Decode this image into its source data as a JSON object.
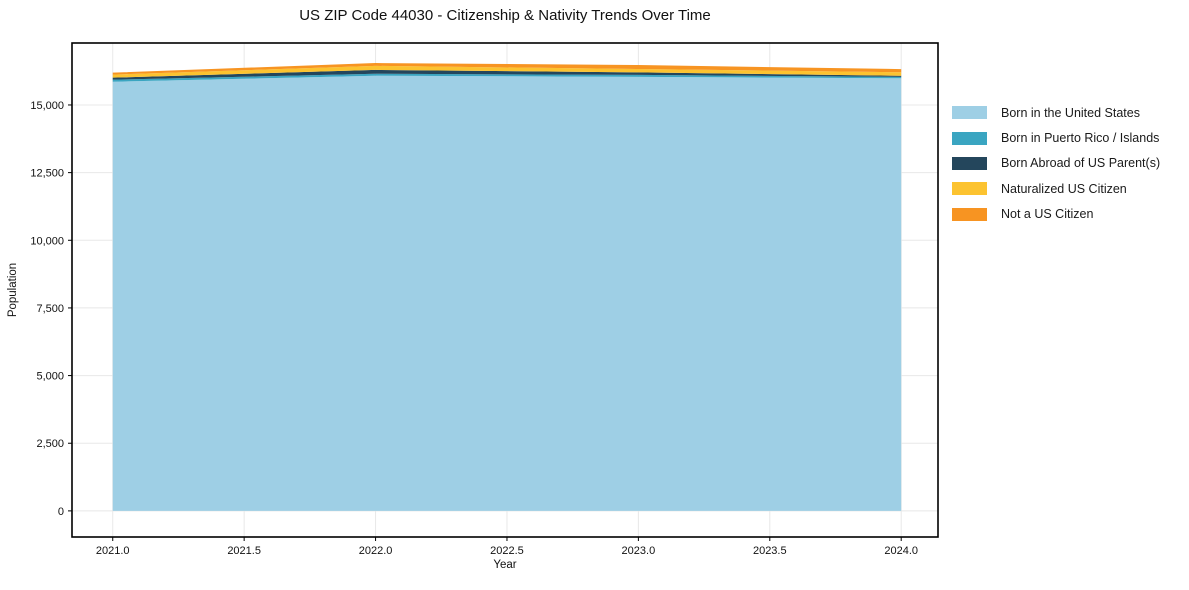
{
  "chart_data": {
    "type": "area",
    "stacked": true,
    "title": "US ZIP Code 44030 - Citizenship & Nativity Trends Over Time",
    "xlabel": "Year",
    "ylabel": "Population",
    "x": [
      2021,
      2022,
      2023,
      2024
    ],
    "series": [
      {
        "name": "Born in the United States",
        "color": "#9ecfe5",
        "values": [
          15860,
          16080,
          16040,
          15985
        ]
      },
      {
        "name": "Born in Puerto Rico / Islands",
        "color": "#3aa5c1",
        "values": [
          75,
          75,
          70,
          55
        ]
      },
      {
        "name": "Born Abroad of US Parent(s)",
        "color": "#24465c",
        "values": [
          75,
          140,
          95,
          40
        ]
      },
      {
        "name": "Naturalized US Citizen",
        "color": "#fcc330",
        "values": [
          110,
          150,
          125,
          130
        ]
      },
      {
        "name": "Not a US Citizen",
        "color": "#f79422",
        "values": [
          75,
          105,
          145,
          115
        ]
      }
    ],
    "xlim": [
      2020.845,
      2024.14
    ],
    "ylim": [
      -965,
      17290
    ],
    "xticks": {
      "values": [
        2021.0,
        2021.5,
        2022.0,
        2022.5,
        2023.0,
        2023.5,
        2024.0
      ],
      "labels": [
        "2021.0",
        "2021.5",
        "2022.0",
        "2022.5",
        "2023.0",
        "2023.5",
        "2024.0"
      ]
    },
    "yticks": {
      "values": [
        0,
        2500,
        5000,
        7500,
        10000,
        12500,
        15000
      ],
      "labels": [
        "0",
        "2,500",
        "5,000",
        "7,500",
        "10,000",
        "12,500",
        "15,000"
      ]
    },
    "grid": true,
    "grid_color": "#e8e8e8",
    "axis_border_color": "#000000",
    "background_color": "#ffffff",
    "legend_position": "right-outside"
  }
}
